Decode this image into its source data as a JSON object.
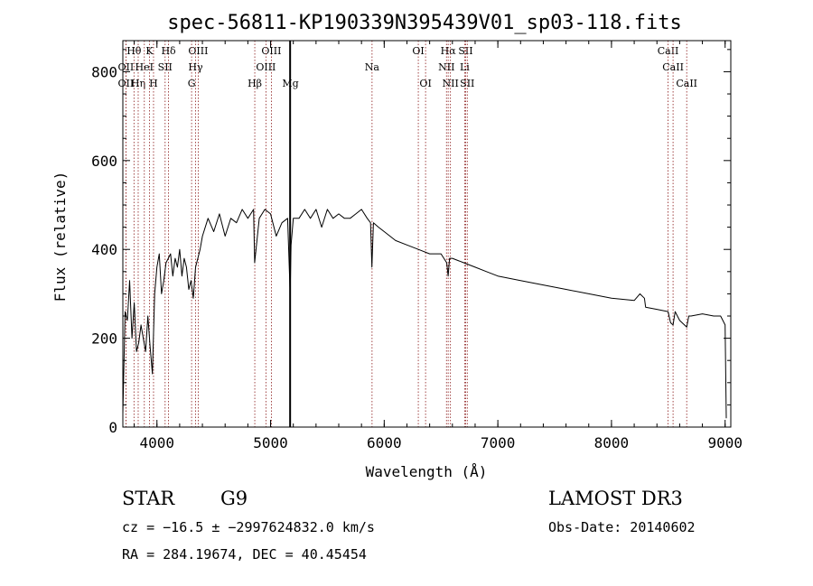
{
  "chart_data": {
    "type": "line",
    "title": "spec-56811-KP190339N395439V01_sp03-118.fits",
    "xlabel": "Wavelength (Å)",
    "ylabel": "Flux (relative)",
    "xlim": [
      3700,
      9050
    ],
    "ylim": [
      0,
      870
    ],
    "xticks": [
      4000,
      5000,
      6000,
      7000,
      8000,
      9000
    ],
    "yticks": [
      0,
      200,
      400,
      600,
      800
    ],
    "xtick_labels": [
      "4000",
      "5000",
      "6000",
      "7000",
      "8000",
      "9000"
    ],
    "ytick_labels": [
      "0",
      "200",
      "400",
      "600",
      "800"
    ],
    "line_color": "#000000",
    "marker_color": "#8b1a1a",
    "spectrum": {
      "x": [
        3700,
        3720,
        3740,
        3760,
        3780,
        3800,
        3820,
        3840,
        3860,
        3880,
        3900,
        3920,
        3940,
        3960,
        3980,
        4000,
        4020,
        4040,
        4060,
        4080,
        4100,
        4120,
        4140,
        4160,
        4180,
        4200,
        4220,
        4240,
        4260,
        4280,
        4300,
        4320,
        4340,
        4360,
        4380,
        4400,
        4450,
        4500,
        4550,
        4600,
        4650,
        4700,
        4750,
        4800,
        4850,
        4860,
        4900,
        4950,
        5000,
        5050,
        5100,
        5150,
        5172,
        5180,
        5200,
        5250,
        5300,
        5350,
        5400,
        5450,
        5500,
        5550,
        5600,
        5650,
        5700,
        5750,
        5800,
        5850,
        5880,
        5892,
        5905,
        5950,
        6000,
        6100,
        6200,
        6300,
        6400,
        6500,
        6550,
        6563,
        6575,
        6600,
        6700,
        6800,
        6900,
        7000,
        7200,
        7400,
        7600,
        7800,
        8000,
        8200,
        8250,
        8290,
        8300,
        8400,
        8498,
        8520,
        8542,
        8560,
        8600,
        8662,
        8680,
        8700,
        8800,
        8900,
        8960,
        8980,
        9000,
        9010
      ],
      "y": [
        30,
        260,
        240,
        330,
        200,
        280,
        170,
        190,
        230,
        200,
        170,
        250,
        180,
        120,
        300,
        360,
        390,
        300,
        330,
        370,
        380,
        390,
        340,
        380,
        360,
        400,
        340,
        380,
        360,
        310,
        330,
        290,
        360,
        380,
        400,
        430,
        470,
        440,
        480,
        430,
        470,
        460,
        490,
        470,
        490,
        370,
        470,
        490,
        480,
        430,
        460,
        470,
        300,
        410,
        470,
        470,
        490,
        470,
        490,
        450,
        490,
        470,
        480,
        470,
        470,
        480,
        490,
        470,
        460,
        360,
        460,
        450,
        440,
        420,
        410,
        400,
        390,
        390,
        370,
        340,
        380,
        380,
        370,
        360,
        350,
        340,
        330,
        320,
        310,
        300,
        290,
        285,
        300,
        290,
        270,
        265,
        260,
        235,
        230,
        260,
        240,
        225,
        250,
        250,
        255,
        250,
        250,
        240,
        230,
        20
      ],
      "markers": [
        {
          "x": 5172,
          "bold": true
        }
      ]
    },
    "line_markers": [
      {
        "label": "Hθ",
        "x": 3798,
        "row": 0
      },
      {
        "label": "OII",
        "x": 3727,
        "row": 1
      },
      {
        "label": "OII",
        "x": 3727,
        "row": 2
      },
      {
        "label": "Hη",
        "x": 3835,
        "row": 2
      },
      {
        "label": "K",
        "x": 3934,
        "row": 0
      },
      {
        "label": "HeI",
        "x": 3889,
        "row": 1
      },
      {
        "label": "H",
        "x": 3970,
        "row": 2
      },
      {
        "label": "Hδ",
        "x": 4102,
        "row": 0
      },
      {
        "label": "SII",
        "x": 4072,
        "row": 1
      },
      {
        "label": "OIII",
        "x": 4363,
        "row": 0
      },
      {
        "label": "Hγ",
        "x": 4340,
        "row": 1
      },
      {
        "label": "G",
        "x": 4305,
        "row": 2
      },
      {
        "label": "Hβ",
        "x": 4861,
        "row": 2
      },
      {
        "label": "OIII",
        "x": 5007,
        "row": 0
      },
      {
        "label": "OIII",
        "x": 4959,
        "row": 1
      },
      {
        "label": "Mg",
        "x": 5175,
        "row": 2
      },
      {
        "label": "Na",
        "x": 5893,
        "row": 1
      },
      {
        "label": "OI",
        "x": 6300,
        "row": 0
      },
      {
        "label": "OI",
        "x": 6364,
        "row": 2
      },
      {
        "label": "Hα",
        "x": 6563,
        "row": 0
      },
      {
        "label": "NII",
        "x": 6548,
        "row": 1
      },
      {
        "label": "NII",
        "x": 6583,
        "row": 2
      },
      {
        "label": "SII",
        "x": 6717,
        "row": 0
      },
      {
        "label": "Li",
        "x": 6708,
        "row": 1
      },
      {
        "label": "SII",
        "x": 6731,
        "row": 2
      },
      {
        "label": "CaII",
        "x": 8498,
        "row": 0
      },
      {
        "label": "CaII",
        "x": 8542,
        "row": 1
      },
      {
        "label": "CaII",
        "x": 8662,
        "row": 2
      }
    ]
  },
  "info": {
    "class": "STAR",
    "subclass": "G9",
    "survey": "LAMOST DR3",
    "cz": "cz = −16.5 ± −2997624832.0 km/s",
    "obs_date": "Obs-Date: 20140602",
    "radec": "RA = 284.19674, DEC =  40.45454"
  }
}
